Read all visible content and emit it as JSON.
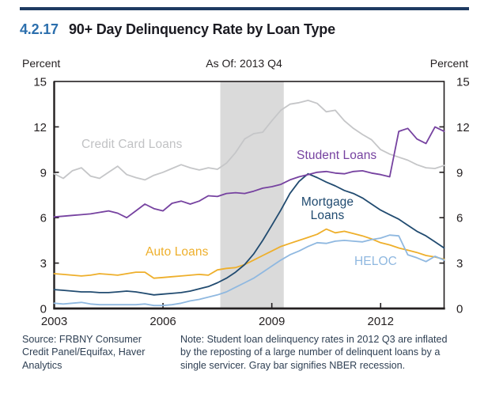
{
  "figure_number": "4.2.17",
  "title": "90+ Day Delinquency Rate by Loan Type",
  "axis": {
    "unit_left": "Percent",
    "unit_right": "Percent",
    "as_of": "As Of: 2013 Q4"
  },
  "footer": {
    "source": "Source: FRBNY Consumer\nCredit Panel/Equifax, Haver\nAnalytics",
    "note": "Note: Student loan delinquency rates in 2012 Q3 are inflated\nby the reposting of a large number of delinquent loans by a\nsingle servicer. Gray bar signifies NBER recession."
  },
  "chart_data": {
    "type": "line",
    "title": "90+ Day Delinquency Rate by Loan Type",
    "xlabel": "",
    "ylabel": "Percent",
    "x_start": 2003.0,
    "x_step": 0.25,
    "x_unit": "quarterly",
    "ylim": [
      0,
      15
    ],
    "yticks": [
      0,
      3,
      6,
      9,
      12,
      15
    ],
    "xticks": [
      2003,
      2006,
      2009,
      2012
    ],
    "grid": false,
    "legend_position": "inline-labels",
    "recession_band": [
      2007.58,
      2009.33
    ],
    "band_color": "#dadada",
    "axis_color": "#231f20",
    "series": [
      {
        "name": "Credit Card Loans",
        "color": "#c5c6c8",
        "values": [
          8.9,
          8.6,
          9.1,
          9.3,
          8.75,
          8.6,
          9.0,
          9.4,
          8.85,
          8.65,
          8.5,
          8.8,
          9.0,
          9.25,
          9.5,
          9.3,
          9.15,
          9.3,
          9.2,
          9.6,
          10.3,
          11.2,
          11.55,
          11.65,
          12.4,
          13.1,
          13.5,
          13.6,
          13.75,
          13.55,
          13.0,
          13.1,
          12.4,
          11.9,
          11.5,
          11.15,
          10.5,
          10.2,
          10.0,
          9.8,
          9.5,
          9.3,
          9.25,
          9.45
        ]
      },
      {
        "name": "Auto Loans",
        "color": "#eeaf2b",
        "values": [
          2.3,
          2.25,
          2.2,
          2.15,
          2.2,
          2.3,
          2.25,
          2.2,
          2.3,
          2.4,
          2.4,
          2.0,
          2.05,
          2.1,
          2.15,
          2.2,
          2.25,
          2.2,
          2.55,
          2.65,
          2.7,
          2.9,
          3.2,
          3.5,
          3.8,
          4.1,
          4.3,
          4.5,
          4.7,
          4.9,
          5.25,
          5.0,
          5.1,
          4.95,
          4.8,
          4.6,
          4.35,
          4.2,
          4.0,
          3.85,
          3.7,
          3.5,
          3.4,
          3.25
        ]
      },
      {
        "name": "HELOC",
        "color": "#8fb8e0",
        "values": [
          0.35,
          0.3,
          0.35,
          0.4,
          0.3,
          0.25,
          0.25,
          0.25,
          0.25,
          0.25,
          0.3,
          0.2,
          0.2,
          0.25,
          0.35,
          0.5,
          0.6,
          0.75,
          0.9,
          1.1,
          1.4,
          1.7,
          2.0,
          2.4,
          2.8,
          3.2,
          3.55,
          3.8,
          4.1,
          4.35,
          4.3,
          4.45,
          4.5,
          4.45,
          4.4,
          4.55,
          4.65,
          4.85,
          4.8,
          3.55,
          3.35,
          3.1,
          3.45,
          3.2
        ]
      },
      {
        "name": "Mortgage Loans",
        "color": "#214b70",
        "values": [
          1.25,
          1.2,
          1.15,
          1.1,
          1.1,
          1.05,
          1.05,
          1.1,
          1.15,
          1.1,
          1.0,
          0.9,
          0.95,
          1.0,
          1.05,
          1.15,
          1.3,
          1.45,
          1.7,
          2.0,
          2.4,
          2.9,
          3.6,
          4.5,
          5.5,
          6.5,
          7.6,
          8.4,
          8.9,
          8.65,
          8.35,
          8.1,
          7.8,
          7.6,
          7.3,
          6.9,
          6.5,
          6.2,
          5.9,
          5.5,
          5.1,
          4.8,
          4.4,
          4.0
        ]
      },
      {
        "name": "Student Loans",
        "color": "#7642a0",
        "values": [
          6.05,
          6.1,
          6.15,
          6.2,
          6.25,
          6.35,
          6.45,
          6.3,
          6.0,
          6.45,
          6.9,
          6.6,
          6.45,
          6.95,
          7.1,
          6.9,
          7.1,
          7.45,
          7.4,
          7.6,
          7.65,
          7.6,
          7.75,
          7.95,
          8.05,
          8.2,
          8.5,
          8.7,
          8.85,
          9.0,
          9.05,
          8.95,
          8.9,
          9.05,
          9.1,
          8.95,
          8.85,
          8.7,
          11.7,
          11.9,
          11.2,
          10.9,
          12.0,
          11.7
        ]
      }
    ]
  }
}
